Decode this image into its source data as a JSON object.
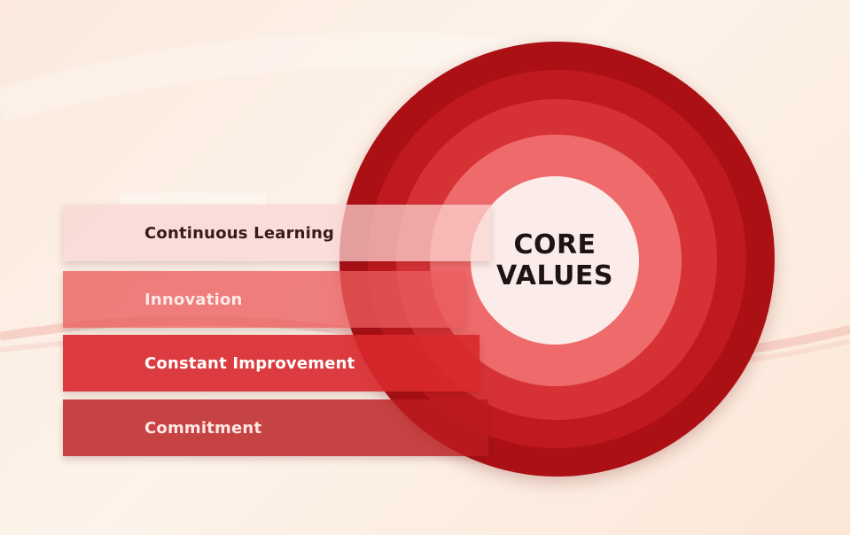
{
  "center": {
    "line1": "CORE",
    "line2": "VALUES"
  },
  "values": [
    {
      "label": "Continuous Learning"
    },
    {
      "label": "Innovation"
    },
    {
      "label": "Constant Improvement"
    },
    {
      "label": "Commitment"
    }
  ],
  "colors": {
    "ring_outer": "#ab1015",
    "ring_2": "#c01a1f",
    "ring_3": "#d63236",
    "ring_4": "#ef6b6b",
    "ring_center": "#fbecea",
    "background": "#fdf3ea"
  }
}
